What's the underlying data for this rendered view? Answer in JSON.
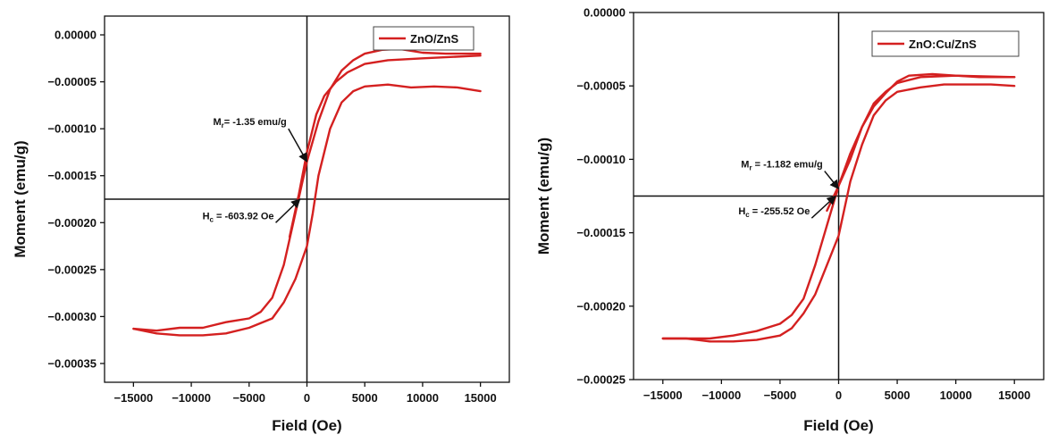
{
  "chart_data": [
    {
      "type": "line",
      "xlabel": "Field (Oe)",
      "ylabel": "Moment (emu/g)",
      "xlim": [
        -17500,
        17500
      ],
      "ylim": [
        -0.00037,
        2e-05
      ],
      "xticks": [
        -15000,
        -10000,
        -5000,
        0,
        5000,
        10000,
        15000
      ],
      "xtick_labels": [
        "−15000",
        "−10000",
        "−5000",
        "0",
        "5000",
        "10000",
        "15000"
      ],
      "yticks": [
        0,
        -5e-05,
        -0.0001,
        -0.00015,
        -0.0002,
        -0.00025,
        -0.0003,
        -0.00035
      ],
      "ytick_labels": [
        "0.00000",
        "−0.00005",
        "−0.00010",
        "−0.00015",
        "−0.00020",
        "−0.00025",
        "−0.00030",
        "−0.00035"
      ],
      "grid": false,
      "legend_position": "top-right",
      "color": "#d42020",
      "reference_lines": {
        "x": 0,
        "y": -0.000175
      },
      "series": [
        {
          "name": "ZnO/ZnS",
          "branches": [
            {
              "x": [
                15000,
                12000,
                10000,
                8000,
                6500,
                5000,
                4000,
                3000,
                2000,
                1000,
                0,
                -1000,
                -2000,
                -3000,
                -4000,
                -5000,
                -7000,
                -9000,
                -11000,
                -13000,
                -15000
              ],
              "y": [
                -2e-05,
                -2e-05,
                -1.9e-05,
                -1.5e-05,
                -1.6e-05,
                -2e-05,
                -2.7e-05,
                -3.8e-05,
                -5.8e-05,
                -9.2e-05,
                -0.000135,
                -0.00019,
                -0.000245,
                -0.00028,
                -0.000295,
                -0.000302,
                -0.000306,
                -0.000312,
                -0.000312,
                -0.000315,
                -0.000313
              ]
            },
            {
              "x": [
                -15000,
                -13000,
                -11000,
                -9000,
                -7000,
                -5000,
                -3000,
                -2000,
                -1000,
                0,
                500,
                1000,
                2000,
                3000,
                4000,
                5000,
                7000,
                9000,
                11000,
                13000,
                15000
              ],
              "y": [
                -0.000313,
                -0.000318,
                -0.00032,
                -0.00032,
                -0.000318,
                -0.000312,
                -0.000302,
                -0.000285,
                -0.00026,
                -0.000225,
                -0.00019,
                -0.00015,
                -0.0001,
                -7.2e-05,
                -6e-05,
                -5.5e-05,
                -5.3e-05,
                -5.6e-05,
                -5.5e-05,
                -5.6e-05,
                -6e-05
              ]
            },
            {
              "x": [
                -1500,
                -700,
                0,
                800,
                1500,
                2500,
                3500,
                5000,
                7000,
                10000,
                15000
              ],
              "y": [
                -0.000215,
                -0.00017,
                -0.000125,
                -8.5e-05,
                -6.5e-05,
                -5e-05,
                -4e-05,
                -3.1e-05,
                -2.7e-05,
                -2.5e-05,
                -2.2e-05
              ]
            }
          ]
        }
      ],
      "annotations": [
        {
          "main": "M",
          "sub": "r",
          "rest": "= -1.35 emu/g",
          "at": [
            0,
            -0.000135
          ],
          "from": [
            -1600,
            -0.0001
          ]
        },
        {
          "main": "H",
          "sub": "c",
          "rest": " = -603.92 Oe",
          "at": [
            -604,
            -0.000175
          ],
          "from": [
            -2700,
            -0.0002
          ]
        }
      ]
    },
    {
      "type": "line",
      "xlabel": "Field (Oe)",
      "ylabel": "Moment (emu/g)",
      "xlim": [
        -17500,
        17500
      ],
      "ylim": [
        -0.00025,
        0.0
      ],
      "xticks": [
        -15000,
        -10000,
        -5000,
        0,
        5000,
        10000,
        15000
      ],
      "xtick_labels": [
        "−15000",
        "−10000",
        "−5000",
        "0",
        "5000",
        "10000",
        "15000"
      ],
      "yticks": [
        0,
        -5e-05,
        -0.0001,
        -0.00015,
        -0.0002,
        -0.00025
      ],
      "ytick_labels": [
        "0.00000",
        "−0.00005",
        "−0.00010",
        "−0.00015",
        "−0.00020",
        "−0.00025"
      ],
      "grid": false,
      "legend_position": "top-right",
      "color": "#d42020",
      "reference_lines": {
        "x": 0,
        "y": -0.000125
      },
      "series": [
        {
          "name": "ZnO:Cu/ZnS",
          "branches": [
            {
              "x": [
                15000,
                12000,
                10000,
                8000,
                6000,
                5000,
                4000,
                3000,
                2000,
                1000,
                0,
                -1000,
                -2000,
                -3000,
                -4000,
                -5000,
                -7000,
                -9000,
                -11000,
                -13000,
                -15000
              ],
              "y": [
                -4.4e-05,
                -4.4e-05,
                -4.3e-05,
                -4.2e-05,
                -4.3e-05,
                -4.7e-05,
                -5.5e-05,
                -6.4e-05,
                -7.8e-05,
                -9.6e-05,
                -0.000118,
                -0.000145,
                -0.000172,
                -0.000195,
                -0.000206,
                -0.000212,
                -0.000217,
                -0.00022,
                -0.000222,
                -0.000222,
                -0.000222
              ]
            },
            {
              "x": [
                -15000,
                -13000,
                -11000,
                -9000,
                -7000,
                -5000,
                -4000,
                -3000,
                -2000,
                -1000,
                0,
                1000,
                2000,
                3000,
                4000,
                5000,
                7000,
                9000,
                11000,
                13000,
                15000
              ],
              "y": [
                -0.000222,
                -0.000222,
                -0.000224,
                -0.000224,
                -0.000223,
                -0.00022,
                -0.000215,
                -0.000205,
                -0.000192,
                -0.000172,
                -0.000152,
                -0.000115,
                -9e-05,
                -7e-05,
                -6e-05,
                -5.4e-05,
                -5.1e-05,
                -4.9e-05,
                -4.9e-05,
                -4.9e-05,
                -5e-05
              ]
            },
            {
              "x": [
                -1000,
                0,
                1000,
                2000,
                3000,
                4000,
                5000,
                7000,
                10000,
                15000
              ],
              "y": [
                -0.000135,
                -0.000118,
                -0.0001,
                -7.8e-05,
                -6.2e-05,
                -5.4e-05,
                -4.8e-05,
                -4.4e-05,
                -4.3e-05,
                -4.4e-05
              ]
            }
          ]
        }
      ],
      "annotations": [
        {
          "main": "M",
          "sub": "r",
          "rest": " = -1.182 emu/g",
          "at": [
            0,
            -0.00012
          ],
          "from": [
            -1200,
            -0.000108
          ]
        },
        {
          "main": "H",
          "sub": "c",
          "rest": " = -255.52 Oe",
          "at": [
            -256,
            -0.000125
          ],
          "from": [
            -2300,
            -0.00014
          ]
        }
      ]
    }
  ]
}
